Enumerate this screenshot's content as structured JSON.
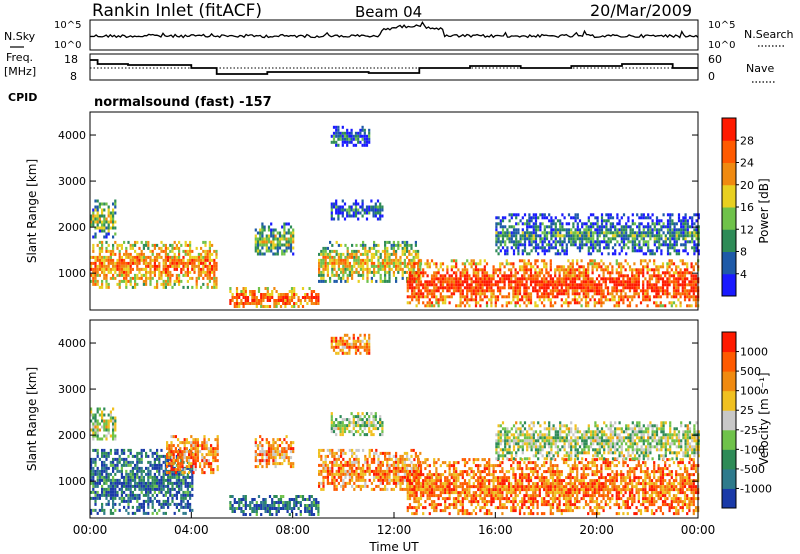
{
  "header": {
    "title": "Rankin Inlet (fitACF)",
    "beam": "Beam 04",
    "date": "20/Mar/2009"
  },
  "panels": {
    "nsky": {
      "left_label": "N.Sky",
      "right_label": "N.Search",
      "ticks_left": [
        "10^5",
        "10^0"
      ],
      "ticks_right": [
        "10^5",
        "10^0"
      ]
    },
    "freq": {
      "left_label_1": "Freq.",
      "left_label_2": "[MHz]",
      "right_label": "Nave",
      "ticks_left": [
        "18",
        "8"
      ],
      "ticks_right": [
        "60",
        "0"
      ]
    },
    "cpid": {
      "label": "CPID",
      "text": "normalsound (fast) -157"
    }
  },
  "chart_data": [
    {
      "type": "heatmap",
      "name": "power",
      "ylabel": "Slant Range [km]",
      "xlabel": "",
      "yticks": [
        "1000",
        "2000",
        "3000",
        "4000"
      ],
      "ylim": [
        200,
        4500
      ],
      "xlim": [
        0,
        24
      ],
      "colorbar": {
        "label": "Power [dB]",
        "ticks": [
          "4",
          "8",
          "12",
          "16",
          "20",
          "24",
          "28"
        ],
        "colors": [
          "#1a1aff",
          "#1e5aa8",
          "#2e8b57",
          "#6fc24a",
          "#e8d020",
          "#f08a10",
          "#ff5a00",
          "#ff1a00"
        ]
      },
      "regions": [
        {
          "t0": 0.0,
          "t1": 5.0,
          "r0": 700,
          "r1": 1700,
          "level": 0.8
        },
        {
          "t0": 0.0,
          "t1": 1.0,
          "r0": 1800,
          "r1": 2600,
          "level": 0.5
        },
        {
          "t0": 5.5,
          "t1": 9.0,
          "r0": 250,
          "r1": 700,
          "level": 0.85
        },
        {
          "t0": 6.5,
          "t1": 8.0,
          "r0": 1400,
          "r1": 2100,
          "level": 0.5
        },
        {
          "t0": 9.0,
          "t1": 13.0,
          "r0": 800,
          "r1": 1700,
          "level": 0.65
        },
        {
          "t0": 9.5,
          "t1": 11.0,
          "r0": 3750,
          "r1": 4200,
          "level": 0.3
        },
        {
          "t0": 9.5,
          "t1": 11.5,
          "r0": 2200,
          "r1": 2600,
          "level": 0.3
        },
        {
          "t0": 12.5,
          "t1": 24.0,
          "r0": 300,
          "r1": 1300,
          "level": 0.95
        },
        {
          "t0": 16.0,
          "t1": 24.0,
          "r0": 1400,
          "r1": 2300,
          "level": 0.35
        }
      ]
    },
    {
      "type": "heatmap",
      "name": "velocity",
      "ylabel": "Slant Range [km]",
      "xlabel": "Time UT",
      "xticks": [
        "00:00",
        "04:00",
        "08:00",
        "12:00",
        "16:00",
        "20:00",
        "00:00"
      ],
      "yticks": [
        "1000",
        "2000",
        "3000",
        "4000"
      ],
      "ylim": [
        200,
        4500
      ],
      "xlim": [
        0,
        24
      ],
      "colorbar": {
        "label": "Velocity [m s⁻¹]",
        "ticks": [
          "1000",
          "500",
          "100",
          "25",
          "-25",
          "-100",
          "-500",
          "-1000"
        ],
        "colors": [
          "#1a3aa8",
          "#2e7a8c",
          "#2e8b57",
          "#6fc24a",
          "#c8c8c8",
          "#f0c020",
          "#f08a10",
          "#ff5a00",
          "#ff1a00"
        ]
      },
      "regions": [
        {
          "t0": 0.0,
          "t1": 4.0,
          "r0": 300,
          "r1": 1700,
          "level": 0.15
        },
        {
          "t0": 3.0,
          "t1": 5.0,
          "r0": 1200,
          "r1": 2000,
          "level": 0.75
        },
        {
          "t0": 0.0,
          "t1": 1.0,
          "r0": 1900,
          "r1": 2600,
          "level": 0.45
        },
        {
          "t0": 5.5,
          "t1": 9.0,
          "r0": 250,
          "r1": 700,
          "level": 0.15
        },
        {
          "t0": 6.5,
          "t1": 8.0,
          "r0": 1300,
          "r1": 2000,
          "level": 0.7
        },
        {
          "t0": 9.0,
          "t1": 13.0,
          "r0": 800,
          "r1": 1700,
          "level": 0.72
        },
        {
          "t0": 9.5,
          "t1": 11.0,
          "r0": 3750,
          "r1": 4200,
          "level": 0.75
        },
        {
          "t0": 9.5,
          "t1": 11.5,
          "r0": 2000,
          "r1": 2500,
          "level": 0.45
        },
        {
          "t0": 12.5,
          "t1": 24.0,
          "r0": 300,
          "r1": 1500,
          "level": 0.78
        },
        {
          "t0": 16.0,
          "t1": 24.0,
          "r0": 1500,
          "r1": 2300,
          "level": 0.45
        }
      ]
    }
  ]
}
